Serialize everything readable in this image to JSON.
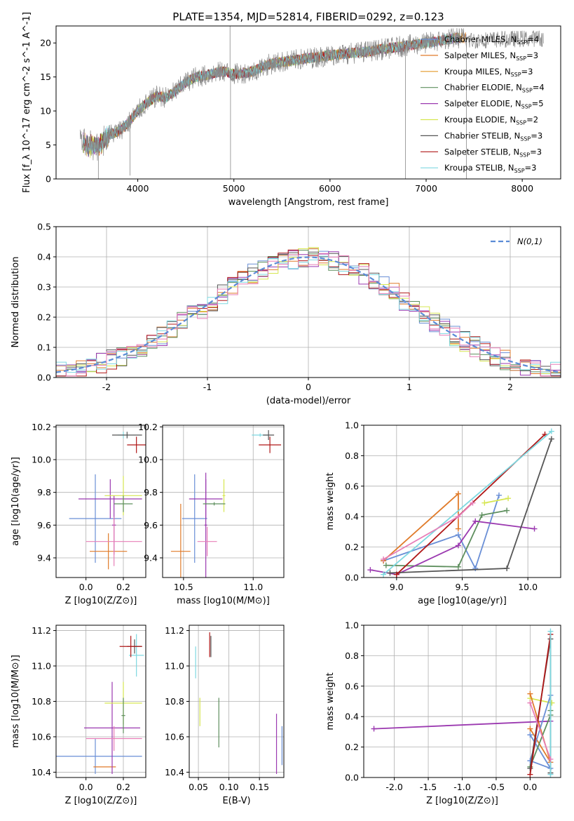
{
  "figure_title": "PLATE=1354, MJD=52814, FIBERID=0292, z=0.123",
  "colors": {
    "chabrier_miles": "#6a8fd6",
    "salpeter_miles": "#e07b2a",
    "kroupa_miles": "#e49a2a",
    "chabrier_elodie": "#5e8f5e",
    "salpeter_elodie": "#9b39b0",
    "kroupa_elodie": "#d6e650",
    "chabrier_stelib": "#555555",
    "salpeter_stelib": "#b01818",
    "kroupa_stelib": "#7ed8e0",
    "pink": "#e77fb8",
    "gray": "#888888",
    "gauss": "#5b8bd6"
  },
  "chart_data": [
    {
      "id": "spectrum",
      "type": "line",
      "title": "PLATE=1354, MJD=52814, FIBERID=0292, z=0.123",
      "xlabel": "wavelength [Angstrom, rest frame]",
      "ylabel": "Flux [f_λ 10^-17 erg cm^-2 s^-1 A^-1]",
      "xlim": [
        3150,
        8400
      ],
      "ylim": [
        0,
        22.5
      ],
      "xticks": [
        4000,
        5000,
        6000,
        7000,
        8000
      ],
      "yticks": [
        0,
        5,
        10,
        15,
        20
      ],
      "grid": false,
      "legend_position": "right",
      "legend": [
        {
          "label": "Chabrier MILES, N",
          "sub": "SSP",
          "suffix": "=4",
          "color": "#6a8fd6"
        },
        {
          "label": "Salpeter MILES, N",
          "sub": "SSP",
          "suffix": "=3",
          "color": "#e07b2a"
        },
        {
          "label": "Kroupa MILES, N",
          "sub": "SSP",
          "suffix": "=3",
          "color": "#e49a2a"
        },
        {
          "label": "Chabrier ELODIE, N",
          "sub": "SSP",
          "suffix": "=4",
          "color": "#5e8f5e"
        },
        {
          "label": "Salpeter ELODIE, N",
          "sub": "SSP",
          "suffix": "=5",
          "color": "#9b39b0"
        },
        {
          "label": "Kroupa ELODIE, N",
          "sub": "SSP",
          "suffix": "=2",
          "color": "#d6e650"
        },
        {
          "label": "Chabrier STELIB, N",
          "sub": "SSP",
          "suffix": "=3",
          "color": "#555555"
        },
        {
          "label": "Salpeter STELIB, N",
          "sub": "SSP",
          "suffix": "=3",
          "color": "#b01818"
        },
        {
          "label": "Kroupa STELIB, N",
          "sub": "SSP",
          "suffix": "=3",
          "color": "#7ed8e0"
        }
      ],
      "continuum": [
        [
          3400,
          5.5
        ],
        [
          3500,
          4.8
        ],
        [
          3600,
          5.0
        ],
        [
          3700,
          6.5
        ],
        [
          3800,
          7.0
        ],
        [
          3900,
          8.2
        ],
        [
          4000,
          10.0
        ],
        [
          4100,
          11.2
        ],
        [
          4200,
          12.2
        ],
        [
          4300,
          12.0
        ],
        [
          4400,
          13.0
        ],
        [
          4500,
          14.2
        ],
        [
          4600,
          15.0
        ],
        [
          4700,
          15.2
        ],
        [
          4800,
          15.6
        ],
        [
          4900,
          15.8
        ],
        [
          5000,
          15.4
        ],
        [
          5100,
          15.6
        ],
        [
          5200,
          15.8
        ],
        [
          5300,
          16.5
        ],
        [
          5400,
          17.0
        ],
        [
          5500,
          17.2
        ],
        [
          5600,
          17.4
        ],
        [
          5700,
          17.6
        ],
        [
          5800,
          17.8
        ],
        [
          5900,
          18.0
        ],
        [
          6000,
          18.2
        ],
        [
          6100,
          18.3
        ],
        [
          6200,
          18.5
        ],
        [
          6300,
          18.6
        ],
        [
          6400,
          18.8
        ],
        [
          6500,
          19.0
        ],
        [
          6600,
          19.2
        ],
        [
          6700,
          19.4
        ],
        [
          6800,
          19.6
        ],
        [
          6900,
          19.8
        ],
        [
          7000,
          20.0
        ],
        [
          7100,
          20.2
        ],
        [
          7200,
          20.5
        ],
        [
          7300,
          20.7
        ],
        [
          7400,
          20.8
        ],
        [
          7500,
          20.9
        ],
        [
          8200,
          21.2
        ]
      ],
      "spikes": [
        [
          4960,
          22.5
        ],
        [
          4965,
          0
        ],
        [
          6785,
          0
        ],
        [
          7420,
          0
        ],
        [
          3590,
          0
        ],
        [
          3920,
          0.5
        ]
      ]
    },
    {
      "id": "residuals",
      "type": "histogram",
      "xlabel": "(data-model)/error",
      "ylabel": "Normed distribution",
      "xlim": [
        -2.5,
        2.5
      ],
      "ylim": [
        0,
        0.5
      ],
      "xticks": [
        -2,
        -1,
        0,
        1,
        2
      ],
      "yticks": [
        0.0,
        0.1,
        0.2,
        0.3,
        0.4,
        0.5
      ],
      "grid": true,
      "legend_position": "top-right",
      "legend": [
        {
          "label": "N(0,1)",
          "color": "#5b8bd6",
          "style": "dashed"
        }
      ],
      "bin_width": 0.1,
      "gaussian": {
        "mean": 0,
        "sigma": 1
      }
    },
    {
      "id": "age_vs_Z",
      "type": "errorbar",
      "xlabel": "Z [log10(Z/Z⊙)]",
      "ylabel": "age [log10(age/yr)]",
      "xlim": [
        -0.16,
        0.32
      ],
      "ylim": [
        9.28,
        10.21
      ],
      "xticks": [
        0.0,
        0.2
      ],
      "yticks": [
        9.4,
        9.6,
        9.8,
        10.0,
        10.2
      ],
      "grid": true,
      "points": [
        {
          "x": 0.05,
          "y": 9.64,
          "xerr": 0.14,
          "yerr": 0.27,
          "color": "#6a8fd6"
        },
        {
          "x": 0.12,
          "y": 9.44,
          "xerr": 0.1,
          "yerr": 0.11,
          "color": "#e07b2a"
        },
        {
          "x": 0.13,
          "y": 9.76,
          "xerr": 0.17,
          "yerr": 0.12,
          "color": "#9b39b0"
        },
        {
          "x": 0.15,
          "y": 9.6,
          "xerr": 0.01,
          "yerr": 0.18,
          "color": "#9b39b0"
        },
        {
          "x": 0.2,
          "y": 9.78,
          "xerr": 0.1,
          "yerr": 0.12,
          "color": "#d6e650"
        },
        {
          "x": 0.2,
          "y": 9.73,
          "xerr": 0.05,
          "yerr": 0.05,
          "color": "#5e8f5e"
        },
        {
          "x": 0.15,
          "y": 9.5,
          "xerr": 0.15,
          "yerr": 0.15,
          "color": "#e77fb8"
        },
        {
          "x": 0.2,
          "y": 10.15,
          "xerr": 0.03,
          "yerr": 0.02,
          "color": "#7ed8e0"
        },
        {
          "x": 0.22,
          "y": 10.15,
          "xerr": 0.08,
          "yerr": 0.02,
          "color": "#555555"
        },
        {
          "x": 0.27,
          "y": 10.09,
          "xerr": 0.05,
          "yerr": 0.05,
          "color": "#b01818"
        }
      ]
    },
    {
      "id": "age_vs_mass",
      "type": "errorbar",
      "xlabel": "mass [log10(M/M⊙)]",
      "ylabel": "",
      "xlim": [
        10.35,
        11.22
      ],
      "ylim": [
        9.28,
        10.21
      ],
      "xticks": [
        10.5,
        11.0
      ],
      "yticks": [
        9.4,
        9.6,
        9.8,
        10.0,
        10.2
      ],
      "grid": true,
      "points": [
        {
          "x": 10.58,
          "y": 9.64,
          "xerr": 0.09,
          "yerr": 0.27,
          "color": "#6a8fd6"
        },
        {
          "x": 10.48,
          "y": 9.44,
          "xerr": 0.07,
          "yerr": 0.29,
          "color": "#e07b2a"
        },
        {
          "x": 10.66,
          "y": 9.76,
          "xerr": 0.12,
          "yerr": 0.12,
          "color": "#9b39b0"
        },
        {
          "x": 10.66,
          "y": 9.6,
          "xerr": 0.01,
          "yerr": 0.32,
          "color": "#9b39b0"
        },
        {
          "x": 10.79,
          "y": 9.78,
          "xerr": 0.01,
          "yerr": 0.1,
          "color": "#d6e650"
        },
        {
          "x": 10.72,
          "y": 9.73,
          "xerr": 0.08,
          "yerr": 0.01,
          "color": "#5e8f5e"
        },
        {
          "x": 10.67,
          "y": 9.5,
          "xerr": 0.07,
          "yerr": 0.09,
          "color": "#e77fb8"
        },
        {
          "x": 11.05,
          "y": 10.15,
          "xerr": 0.06,
          "yerr": 0.01,
          "color": "#7ed8e0"
        },
        {
          "x": 11.11,
          "y": 10.15,
          "xerr": 0.04,
          "yerr": 0.03,
          "color": "#555555"
        },
        {
          "x": 11.12,
          "y": 10.09,
          "xerr": 0.08,
          "yerr": 0.05,
          "color": "#b01818"
        }
      ]
    },
    {
      "id": "weight_vs_age",
      "type": "line",
      "xlabel": "age [log10(age/yr)]",
      "ylabel": "mass weight",
      "xlim": [
        8.75,
        10.25
      ],
      "ylim": [
        0,
        1.0
      ],
      "xticks": [
        9.0,
        9.5,
        10.0
      ],
      "yticks": [
        0.0,
        0.2,
        0.4,
        0.6,
        0.8,
        1.0
      ],
      "grid": true,
      "series": [
        {
          "color": "#6a8fd6",
          "points": [
            [
              8.9,
              0.11
            ],
            [
              9.47,
              0.28
            ],
            [
              9.6,
              0.06
            ],
            [
              9.78,
              0.54
            ]
          ]
        },
        {
          "color": "#e07b2a",
          "points": [
            [
              8.9,
              0.11
            ],
            [
              9.47,
              0.55
            ],
            [
              9.47,
              0.32
            ]
          ]
        },
        {
          "color": "#5e8f5e",
          "points": [
            [
              8.92,
              0.08
            ],
            [
              9.47,
              0.07
            ],
            [
              9.65,
              0.41
            ],
            [
              9.84,
              0.44
            ]
          ]
        },
        {
          "color": "#9b39b0",
          "points": [
            [
              8.8,
              0.05
            ],
            [
              9.0,
              0.02
            ],
            [
              9.47,
              0.21
            ],
            [
              9.6,
              0.37
            ],
            [
              10.05,
              0.32
            ]
          ]
        },
        {
          "color": "#d6e650",
          "points": [
            [
              9.67,
              0.49
            ],
            [
              9.85,
              0.52
            ]
          ]
        },
        {
          "color": "#555555",
          "points": [
            [
              8.95,
              0.03
            ],
            [
              9.84,
              0.06
            ],
            [
              10.18,
              0.91
            ]
          ]
        },
        {
          "color": "#b01818",
          "points": [
            [
              9.0,
              0.02
            ],
            [
              10.13,
              0.94
            ]
          ]
        },
        {
          "color": "#7ed8e0",
          "points": [
            [
              8.9,
              0.02
            ],
            [
              10.18,
              0.96
            ]
          ]
        },
        {
          "color": "#e77fb8",
          "points": [
            [
              8.9,
              0.12
            ],
            [
              9.47,
              0.4
            ],
            [
              9.58,
              0.49
            ]
          ]
        }
      ]
    },
    {
      "id": "mass_vs_Z",
      "type": "errorbar",
      "xlabel": "Z [log10(Z/Z⊙)]",
      "ylabel": "mass [log10(M/M⊙)]",
      "xlim": [
        -0.16,
        0.32
      ],
      "ylim": [
        10.37,
        11.23
      ],
      "xticks": [
        0.0,
        0.2
      ],
      "yticks": [
        10.4,
        10.6,
        10.8,
        11.0,
        11.2
      ],
      "grid": true,
      "points": [
        {
          "x": 0.05,
          "y": 10.49,
          "xerr": 0.25,
          "yerr": 0.1,
          "color": "#6a8fd6"
        },
        {
          "x": 0.1,
          "y": 10.43,
          "xerr": 0.06,
          "yerr": 0.0,
          "color": "#e07b2a"
        },
        {
          "x": 0.14,
          "y": 10.65,
          "xerr": 0.15,
          "yerr": 0.26,
          "color": "#9b39b0"
        },
        {
          "x": 0.2,
          "y": 10.79,
          "xerr": 0.1,
          "yerr": 0.12,
          "color": "#d6e650"
        },
        {
          "x": 0.2,
          "y": 10.72,
          "xerr": 0.01,
          "yerr": 0.1,
          "color": "#5e8f5e"
        },
        {
          "x": 0.15,
          "y": 10.59,
          "xerr": 0.15,
          "yerr": 0.07,
          "color": "#e77fb8"
        },
        {
          "x": 0.27,
          "y": 11.06,
          "xerr": 0.04,
          "yerr": 0.12,
          "color": "#7ed8e0"
        },
        {
          "x": 0.26,
          "y": 11.11,
          "xerr": 0.04,
          "yerr": 0.04,
          "color": "#555555"
        },
        {
          "x": 0.24,
          "y": 11.11,
          "xerr": 0.06,
          "yerr": 0.06,
          "color": "#b01818"
        }
      ]
    },
    {
      "id": "mass_vs_ebv",
      "type": "errorbar",
      "xlabel": "E(B-V)",
      "ylabel": "",
      "xlim": [
        0.035,
        0.19
      ],
      "ylim": [
        10.37,
        11.23
      ],
      "xticks": [
        0.05,
        0.1,
        0.15
      ],
      "yticks": [
        10.4,
        10.6,
        10.8,
        11.0,
        11.2
      ],
      "grid": true,
      "points": [
        {
          "x": 0.0455,
          "y": 11.02,
          "xerr": 0.0,
          "yerr": 0.09,
          "color": "#7ed8e0"
        },
        {
          "x": 0.0525,
          "y": 10.74,
          "xerr": 0.0,
          "yerr": 0.08,
          "color": "#d6e650"
        },
        {
          "x": 0.0705,
          "y": 11.11,
          "xerr": 0.0,
          "yerr": 0.06,
          "color": "#555555"
        },
        {
          "x": 0.0685,
          "y": 11.12,
          "xerr": 0.0,
          "yerr": 0.07,
          "color": "#b01818"
        },
        {
          "x": 0.0835,
          "y": 10.68,
          "xerr": 0.0,
          "yerr": 0.14,
          "color": "#5e8f5e"
        },
        {
          "x": 0.178,
          "y": 10.56,
          "xerr": 0.0,
          "yerr": 0.17,
          "color": "#9b39b0"
        },
        {
          "x": 0.187,
          "y": 10.55,
          "xerr": 0.0,
          "yerr": 0.11,
          "color": "#6a8fd6"
        }
      ]
    },
    {
      "id": "weight_vs_Z",
      "type": "line",
      "xlabel": "Z [log10(Z/Z⊙)]",
      "ylabel": "mass weight",
      "xlim": [
        -2.45,
        0.45
      ],
      "ylim": [
        0,
        1.0
      ],
      "xticks": [
        -2.0,
        -1.5,
        -1.0,
        -0.5,
        0.0
      ],
      "yticks": [
        0.0,
        0.2,
        0.4,
        0.6,
        0.8,
        1.0
      ],
      "grid": true,
      "series": [
        {
          "color": "#9b39b0",
          "points": [
            [
              -2.3,
              0.32
            ],
            [
              0.3,
              0.37
            ]
          ]
        },
        {
          "color": "#d6e650",
          "points": [
            [
              0.0,
              0.52
            ],
            [
              0.32,
              0.49
            ]
          ]
        },
        {
          "color": "#e07b2a",
          "points": [
            [
              0.0,
              0.55
            ],
            [
              0.3,
              0.1
            ],
            [
              0.0,
              0.32
            ]
          ]
        },
        {
          "color": "#6a8fd6",
          "points": [
            [
              0.0,
              0.28
            ],
            [
              0.3,
              0.06
            ],
            [
              0.0,
              0.11
            ],
            [
              0.3,
              0.54
            ]
          ]
        },
        {
          "color": "#5e8f5e",
          "points": [
            [
              0.0,
              0.07
            ],
            [
              0.3,
              0.41
            ],
            [
              0.3,
              0.44
            ]
          ]
        },
        {
          "color": "#555555",
          "points": [
            [
              0.0,
              0.06
            ],
            [
              0.3,
              0.91
            ],
            [
              0.3,
              0.03
            ]
          ]
        },
        {
          "color": "#b01818",
          "points": [
            [
              0.0,
              0.02
            ],
            [
              0.3,
              0.94
            ]
          ]
        },
        {
          "color": "#7ed8e0",
          "points": [
            [
              0.3,
              0.02
            ],
            [
              0.3,
              0.96
            ]
          ]
        },
        {
          "color": "#e77fb8",
          "points": [
            [
              0.0,
              0.49
            ],
            [
              0.3,
              0.12
            ]
          ]
        }
      ]
    }
  ]
}
